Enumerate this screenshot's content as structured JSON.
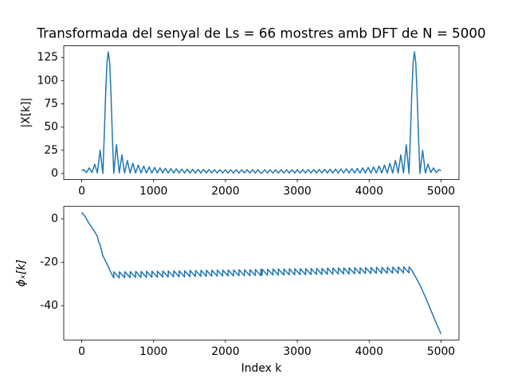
{
  "chart_data": [
    {
      "type": "line",
      "title": "Transformada del senyal de Ls = 66 mostres amb DFT de N = 5000",
      "ylabel": "|X[k]|",
      "color": "#1f77b4",
      "xlim": [
        -250,
        5250
      ],
      "xticks": [
        0,
        1000,
        2000,
        3000,
        4000,
        5000
      ],
      "ylim": [
        -6.55,
        137.55
      ],
      "yticks": [
        0,
        25,
        50,
        75,
        100,
        125
      ],
      "x": [
        0,
        29,
        67,
        105,
        143,
        181,
        218,
        256,
        294,
        313,
        332,
        351,
        370,
        389,
        408,
        427,
        446,
        484,
        522,
        560,
        597,
        635,
        673,
        711,
        749,
        787,
        825,
        863,
        900,
        938,
        976,
        1014,
        1052,
        1090,
        1127,
        1165,
        1203,
        1241,
        1279,
        1317,
        1355,
        1393,
        1430,
        1468,
        1506,
        1544,
        1582,
        1620,
        1658,
        1696,
        1733,
        1771,
        1809,
        1847,
        1885,
        1923,
        1961,
        1999,
        2036,
        2074,
        2112,
        2150,
        2188,
        2226,
        2264,
        2302,
        2340,
        2378,
        2415,
        2453,
        2491,
        2509,
        2547,
        2585,
        2622,
        2660,
        2698,
        2736,
        2774,
        2812,
        2850,
        2888,
        2926,
        2964,
        3001,
        3039,
        3077,
        3115,
        3153,
        3191,
        3229,
        3267,
        3304,
        3342,
        3380,
        3418,
        3456,
        3494,
        3532,
        3570,
        3607,
        3645,
        3683,
        3721,
        3759,
        3797,
        3835,
        3873,
        3910,
        3948,
        3986,
        4024,
        4062,
        4100,
        4137,
        4175,
        4213,
        4251,
        4289,
        4327,
        4365,
        4403,
        4440,
        4478,
        4516,
        4554,
        4573,
        4592,
        4611,
        4630,
        4649,
        4668,
        4687,
        4706,
        4744,
        4782,
        4819,
        4857,
        4895,
        4933,
        4971,
        5000
      ],
      "values": [
        3,
        4,
        1,
        6,
        1,
        10,
        0.5,
        25,
        0,
        39,
        84,
        119,
        131,
        119,
        84,
        39,
        0,
        31,
        0.5,
        20,
        0.5,
        14,
        0.5,
        11,
        0.5,
        9,
        0.5,
        8,
        0.5,
        7,
        0.5,
        6.5,
        0.5,
        6,
        0.5,
        5.5,
        0.5,
        5.2,
        0.5,
        5,
        0.5,
        4.8,
        0.5,
        4.6,
        0.5,
        4.5,
        0.5,
        4.4,
        0.5,
        4.3,
        0.5,
        4.2,
        0.5,
        4.1,
        0.5,
        4.1,
        0.5,
        4,
        0.5,
        4,
        0.5,
        4,
        0.5,
        4,
        0.5,
        4,
        0.5,
        4,
        0.5,
        4,
        0.5,
        0.5,
        4,
        0.5,
        4,
        0.5,
        4,
        0.5,
        4,
        0.5,
        4,
        0.5,
        4,
        0.5,
        4,
        0.5,
        4.1,
        0.5,
        4.1,
        0.5,
        4.2,
        0.5,
        4.3,
        0.5,
        4.4,
        0.5,
        4.5,
        0.5,
        4.6,
        0.5,
        4.8,
        0.5,
        5,
        0.5,
        5.2,
        0.5,
        5.5,
        0.5,
        6,
        0.5,
        6.5,
        0.5,
        7,
        0.5,
        8,
        0.5,
        9,
        0.5,
        11,
        0.5,
        14,
        0.5,
        20,
        0.5,
        31,
        0,
        39,
        84,
        119,
        131,
        119,
        84,
        39,
        0,
        25,
        0.5,
        10,
        1,
        6,
        1,
        4,
        3
      ]
    },
    {
      "type": "line",
      "ylabel": "ϕₓ[k]",
      "xlabel": "Index k",
      "color": "#1f77b4",
      "xlim": [
        -250,
        5250
      ],
      "xticks": [
        0,
        1000,
        2000,
        3000,
        4000,
        5000
      ],
      "ylim": [
        -55.8,
        5.8
      ],
      "yticks": [
        -40,
        -20,
        0
      ],
      "x": [
        0,
        50,
        67,
        100,
        143,
        181,
        218,
        230,
        256,
        294,
        310,
        370,
        410,
        446,
        448,
        522,
        524,
        597,
        599,
        673,
        675,
        749,
        751,
        825,
        827,
        900,
        902,
        976,
        978,
        1052,
        1054,
        1127,
        1129,
        1203,
        1205,
        1279,
        1281,
        1355,
        1357,
        1430,
        1432,
        1506,
        1508,
        1582,
        1584,
        1658,
        1660,
        1733,
        1735,
        1809,
        1811,
        1885,
        1887,
        1961,
        1963,
        2036,
        2038,
        2112,
        2114,
        2188,
        2190,
        2264,
        2266,
        2340,
        2342,
        2415,
        2417,
        2491,
        2493,
        2509,
        2511,
        2585,
        2587,
        2660,
        2662,
        2736,
        2738,
        2812,
        2814,
        2888,
        2890,
        2964,
        2966,
        3039,
        3041,
        3115,
        3117,
        3191,
        3193,
        3267,
        3269,
        3342,
        3344,
        3418,
        3420,
        3494,
        3496,
        3570,
        3572,
        3645,
        3647,
        3721,
        3723,
        3797,
        3799,
        3873,
        3875,
        3948,
        3950,
        4024,
        4026,
        4100,
        4102,
        4175,
        4177,
        4251,
        4253,
        4327,
        4329,
        4403,
        4405,
        4478,
        4480,
        4554,
        4556,
        4600,
        4650,
        4700,
        4782,
        4857,
        4933,
        5000
      ],
      "values": [
        3,
        1,
        0,
        -2,
        -4,
        -6,
        -8,
        -10,
        -12,
        -17,
        -18,
        -22,
        -25,
        -27.2,
        -24.4,
        -27.2,
        -24.4,
        -27.1,
        -24.3,
        -27.1,
        -24.3,
        -27,
        -24.2,
        -27,
        -24.2,
        -26.9,
        -24.1,
        -26.9,
        -24.1,
        -26.9,
        -24.1,
        -26.8,
        -24,
        -26.8,
        -24,
        -26.7,
        -23.9,
        -26.7,
        -23.9,
        -26.7,
        -23.9,
        -26.6,
        -23.8,
        -26.6,
        -23.8,
        -26.5,
        -23.7,
        -26.5,
        -23.7,
        -26.4,
        -23.6,
        -26.4,
        -23.6,
        -26.4,
        -23.6,
        -26.3,
        -23.5,
        -26.3,
        -23.5,
        -26.2,
        -23.4,
        -26.2,
        -23.4,
        -26.2,
        -23.4,
        -26.1,
        -23.3,
        -26.1,
        -23.3,
        -26,
        -23.2,
        -26,
        -23.2,
        -25.9,
        -23.1,
        -25.9,
        -23.1,
        -25.9,
        -23.1,
        -25.8,
        -23,
        -25.8,
        -23,
        -25.7,
        -22.9,
        -25.7,
        -22.9,
        -25.7,
        -22.9,
        -25.6,
        -22.8,
        -25.6,
        -22.8,
        -25.5,
        -22.7,
        -25.5,
        -22.7,
        -25.4,
        -22.6,
        -25.4,
        -22.6,
        -25.4,
        -22.6,
        -25.3,
        -22.5,
        -25.3,
        -22.5,
        -25.2,
        -22.4,
        -25.2,
        -22.4,
        -25.1,
        -22.3,
        -25.1,
        -22.3,
        -25.1,
        -22.3,
        -25,
        -22.2,
        -25,
        -22.2,
        -24.9,
        -22.1,
        -24.9,
        -22.1,
        -24,
        -27,
        -30,
        -36,
        -42,
        -48,
        -53
      ]
    }
  ]
}
